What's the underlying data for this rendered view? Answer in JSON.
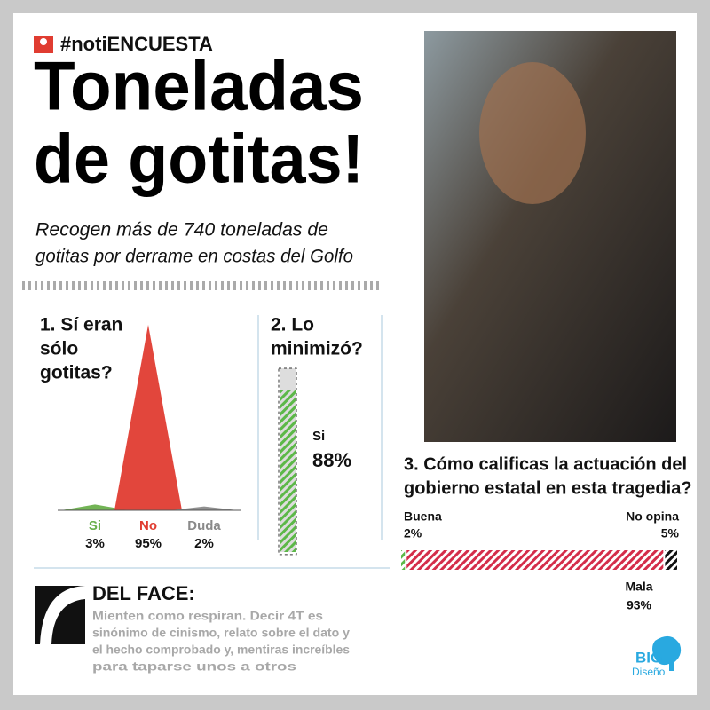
{
  "header": {
    "tag": "#notiENCUESTA",
    "title_lines": [
      "Toneladas",
      "de gotitas!"
    ],
    "subtitle_lines": [
      "Recogen más de 740 toneladas de",
      "gotitas por derrame en costas del Golfo"
    ]
  },
  "chart_data": [
    {
      "type": "peak",
      "title_lines": [
        "1. Sí eran",
        "sólo",
        "gotitas?"
      ],
      "categories": [
        "Si",
        "No",
        "Duda"
      ],
      "values": [
        3,
        95,
        2
      ],
      "value_labels": [
        "3%",
        "95%",
        "2%"
      ],
      "colors": [
        "#6ab04c",
        "#e03c31",
        "#8a8a8a"
      ],
      "ylim": [
        0,
        100
      ]
    },
    {
      "type": "progress",
      "title_lines": [
        "2. Lo",
        "minimizó?"
      ],
      "categories": [
        "Si"
      ],
      "values": [
        88
      ],
      "value_labels": [
        "88%"
      ],
      "color": "#5cb848",
      "ylim": [
        0,
        100
      ]
    },
    {
      "type": "stacked-bar",
      "title_lines": [
        "3. Cómo calificas la actuación del",
        "gobierno estatal en esta tragedia?"
      ],
      "series": [
        {
          "name": "Buena",
          "color": "#5cb848",
          "values": [
            2
          ],
          "value_labels": [
            "2%"
          ]
        },
        {
          "name": "Mala",
          "color": "#d42d4a",
          "values": [
            93
          ],
          "value_labels": [
            "93%"
          ]
        },
        {
          "name": "No opina",
          "color": "#111111",
          "values": [
            5
          ],
          "value_labels": [
            "5%"
          ]
        }
      ]
    }
  ],
  "del_face": {
    "title": "DEL FACE:",
    "lines": [
      "Mienten como respiran. Decir 4T es",
      "sinónimo de cinismo, relato sobre el dato y",
      "el hecho comprobado y, mentiras increíbles",
      "para taparse unos a otros"
    ]
  },
  "logo": {
    "big": "BIG",
    "sub": "Diseño"
  }
}
